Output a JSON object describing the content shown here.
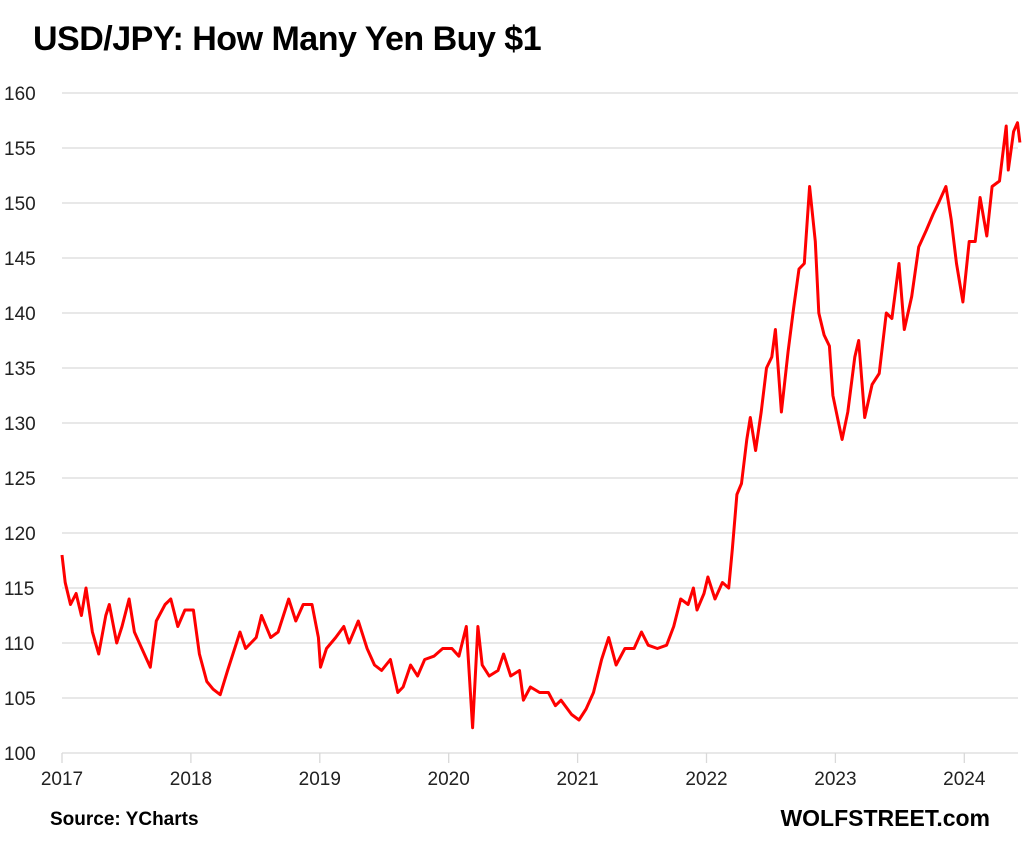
{
  "chart_data": {
    "type": "line",
    "title": "USD/JPY: How Many Yen Buy $1",
    "xlabel": "",
    "ylabel": "",
    "ylim": [
      100,
      160
    ],
    "yticks": [
      "100",
      "105",
      "110",
      "115",
      "120",
      "125",
      "130",
      "135",
      "140",
      "145",
      "150",
      "155",
      "160"
    ],
    "xticks": [
      "2017",
      "2018",
      "2019",
      "2020",
      "2021",
      "2022",
      "2023",
      "2024"
    ],
    "grid": "horizontal",
    "line_color": "#ff0000",
    "series": [
      {
        "points": [
          [
            "2017-01-01",
            118.0
          ],
          [
            "2017-01-10",
            115.5
          ],
          [
            "2017-01-25",
            113.5
          ],
          [
            "2017-02-10",
            114.5
          ],
          [
            "2017-02-25",
            112.5
          ],
          [
            "2017-03-10",
            115.0
          ],
          [
            "2017-03-28",
            111.0
          ],
          [
            "2017-04-15",
            109.0
          ],
          [
            "2017-05-05",
            112.5
          ],
          [
            "2017-05-15",
            113.5
          ],
          [
            "2017-06-05",
            110.0
          ],
          [
            "2017-06-20",
            111.5
          ],
          [
            "2017-07-10",
            114.0
          ],
          [
            "2017-07-25",
            111.0
          ],
          [
            "2017-08-15",
            109.5
          ],
          [
            "2017-09-08",
            107.8
          ],
          [
            "2017-09-25",
            112.0
          ],
          [
            "2017-10-20",
            113.5
          ],
          [
            "2017-11-05",
            114.0
          ],
          [
            "2017-11-25",
            111.5
          ],
          [
            "2017-12-15",
            113.0
          ],
          [
            "2018-01-08",
            113.0
          ],
          [
            "2018-01-25",
            109.0
          ],
          [
            "2018-02-15",
            106.5
          ],
          [
            "2018-03-05",
            105.8
          ],
          [
            "2018-03-25",
            105.3
          ],
          [
            "2018-04-15",
            107.5
          ],
          [
            "2018-05-05",
            109.5
          ],
          [
            "2018-05-20",
            111.0
          ],
          [
            "2018-06-05",
            109.5
          ],
          [
            "2018-07-05",
            110.5
          ],
          [
            "2018-07-20",
            112.5
          ],
          [
            "2018-08-15",
            110.5
          ],
          [
            "2018-09-05",
            111.0
          ],
          [
            "2018-09-25",
            113.0
          ],
          [
            "2018-10-05",
            114.0
          ],
          [
            "2018-10-25",
            112.0
          ],
          [
            "2018-11-15",
            113.5
          ],
          [
            "2018-12-10",
            113.5
          ],
          [
            "2018-12-28",
            110.5
          ],
          [
            "2019-01-03",
            107.8
          ],
          [
            "2019-01-20",
            109.5
          ],
          [
            "2019-02-15",
            110.5
          ],
          [
            "2019-03-10",
            111.5
          ],
          [
            "2019-03-25",
            110.0
          ],
          [
            "2019-04-20",
            112.0
          ],
          [
            "2019-05-15",
            109.5
          ],
          [
            "2019-06-05",
            108.0
          ],
          [
            "2019-06-25",
            107.5
          ],
          [
            "2019-07-20",
            108.5
          ],
          [
            "2019-08-10",
            105.5
          ],
          [
            "2019-08-25",
            106.0
          ],
          [
            "2019-09-15",
            108.0
          ],
          [
            "2019-10-05",
            107.0
          ],
          [
            "2019-10-25",
            108.5
          ],
          [
            "2019-11-20",
            108.8
          ],
          [
            "2019-12-15",
            109.5
          ],
          [
            "2020-01-10",
            109.5
          ],
          [
            "2020-01-30",
            108.8
          ],
          [
            "2020-02-20",
            111.5
          ],
          [
            "2020-03-09",
            102.3
          ],
          [
            "2020-03-24",
            111.5
          ],
          [
            "2020-04-05",
            108.0
          ],
          [
            "2020-04-25",
            107.0
          ],
          [
            "2020-05-20",
            107.5
          ],
          [
            "2020-06-05",
            109.0
          ],
          [
            "2020-06-25",
            107.0
          ],
          [
            "2020-07-20",
            107.5
          ],
          [
            "2020-07-31",
            104.8
          ],
          [
            "2020-08-20",
            106.0
          ],
          [
            "2020-09-15",
            105.5
          ],
          [
            "2020-10-10",
            105.5
          ],
          [
            "2020-10-30",
            104.3
          ],
          [
            "2020-11-15",
            104.8
          ],
          [
            "2020-12-15",
            103.5
          ],
          [
            "2021-01-05",
            103.0
          ],
          [
            "2021-01-25",
            104.0
          ],
          [
            "2021-02-15",
            105.5
          ],
          [
            "2021-03-10",
            108.5
          ],
          [
            "2021-03-30",
            110.5
          ],
          [
            "2021-04-20",
            108.0
          ],
          [
            "2021-05-15",
            109.5
          ],
          [
            "2021-06-10",
            109.5
          ],
          [
            "2021-07-01",
            111.0
          ],
          [
            "2021-07-20",
            109.8
          ],
          [
            "2021-08-15",
            109.5
          ],
          [
            "2021-09-10",
            109.8
          ],
          [
            "2021-09-30",
            111.5
          ],
          [
            "2021-10-20",
            114.0
          ],
          [
            "2021-11-10",
            113.5
          ],
          [
            "2021-11-25",
            115.0
          ],
          [
            "2021-12-05",
            113.0
          ],
          [
            "2021-12-25",
            114.5
          ],
          [
            "2022-01-05",
            116.0
          ],
          [
            "2022-01-25",
            114.0
          ],
          [
            "2022-02-15",
            115.5
          ],
          [
            "2022-03-05",
            115.0
          ],
          [
            "2022-03-15",
            118.5
          ],
          [
            "2022-03-28",
            123.5
          ],
          [
            "2022-04-10",
            124.5
          ],
          [
            "2022-04-25",
            128.5
          ],
          [
            "2022-05-05",
            130.5
          ],
          [
            "2022-05-20",
            127.5
          ],
          [
            "2022-06-05",
            131.0
          ],
          [
            "2022-06-20",
            135.0
          ],
          [
            "2022-07-05",
            136.0
          ],
          [
            "2022-07-15",
            138.5
          ],
          [
            "2022-08-01",
            131.0
          ],
          [
            "2022-08-20",
            136.5
          ],
          [
            "2022-09-05",
            140.5
          ],
          [
            "2022-09-20",
            144.0
          ],
          [
            "2022-10-05",
            144.5
          ],
          [
            "2022-10-20",
            151.5
          ],
          [
            "2022-11-05",
            146.5
          ],
          [
            "2022-11-15",
            140.0
          ],
          [
            "2022-11-30",
            138.0
          ],
          [
            "2022-12-15",
            137.0
          ],
          [
            "2022-12-25",
            132.5
          ],
          [
            "2023-01-10",
            130.0
          ],
          [
            "2023-01-20",
            128.5
          ],
          [
            "2023-02-05",
            131.0
          ],
          [
            "2023-02-25",
            136.0
          ],
          [
            "2023-03-08",
            137.5
          ],
          [
            "2023-03-25",
            130.5
          ],
          [
            "2023-04-15",
            133.5
          ],
          [
            "2023-05-05",
            134.5
          ],
          [
            "2023-05-25",
            140.0
          ],
          [
            "2023-06-10",
            139.5
          ],
          [
            "2023-06-30",
            144.5
          ],
          [
            "2023-07-15",
            138.5
          ],
          [
            "2023-08-05",
            141.5
          ],
          [
            "2023-08-25",
            146.0
          ],
          [
            "2023-09-15",
            147.5
          ],
          [
            "2023-10-05",
            149.0
          ],
          [
            "2023-10-20",
            150.0
          ],
          [
            "2023-11-10",
            151.5
          ],
          [
            "2023-11-25",
            148.5
          ],
          [
            "2023-12-10",
            144.5
          ],
          [
            "2023-12-28",
            141.0
          ],
          [
            "2024-01-15",
            146.5
          ],
          [
            "2024-02-01",
            146.5
          ],
          [
            "2024-02-15",
            150.5
          ],
          [
            "2024-03-05",
            147.0
          ],
          [
            "2024-03-20",
            151.5
          ],
          [
            "2024-04-10",
            152.0
          ],
          [
            "2024-04-29",
            157.0
          ],
          [
            "2024-05-05",
            153.0
          ],
          [
            "2024-05-20",
            156.5
          ],
          [
            "2024-05-31",
            157.3
          ],
          [
            "2024-06-07",
            155.5
          ]
        ]
      }
    ]
  },
  "footer": {
    "source": "Source: YCharts",
    "brand": "WOLFSTREET.com"
  }
}
